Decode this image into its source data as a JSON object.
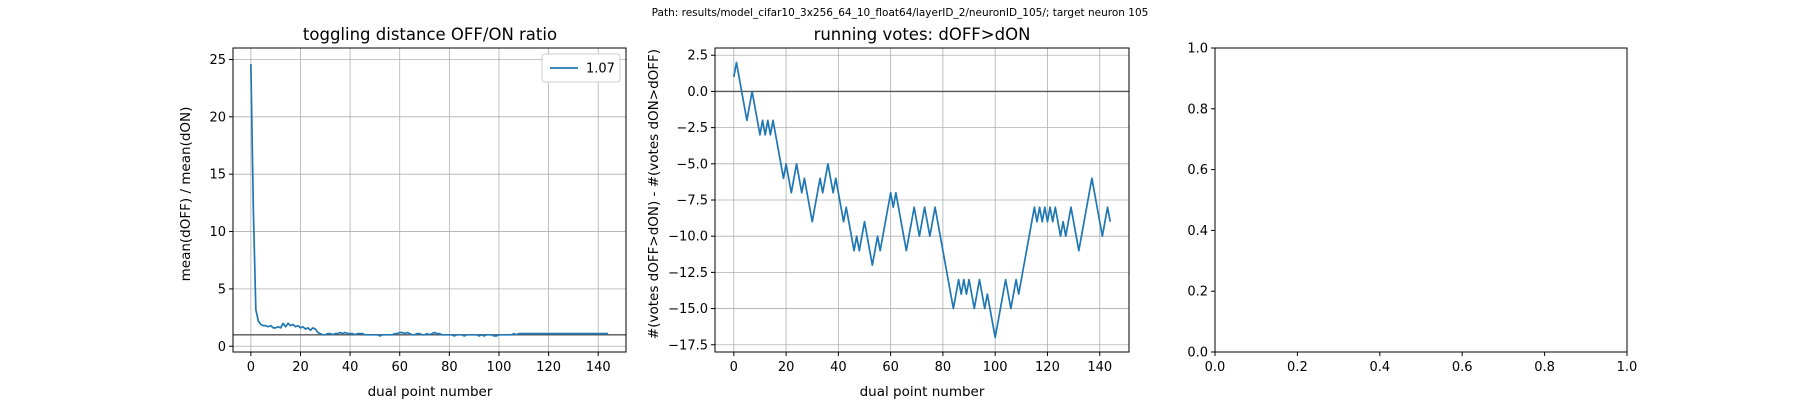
{
  "figure": {
    "suptitle": "Path: results/model_cifar10_3x256_64_10_float64/layerID_2/neuronID_105/; target neuron 105"
  },
  "chart_data": [
    {
      "type": "line",
      "title": "toggling distance OFF/ON ratio",
      "xlabel": "dual point number",
      "ylabel": "mean(dOFF) / mean(dON)",
      "xlim": [
        -7.2,
        151.2
      ],
      "ylim": [
        -0.5,
        26.0
      ],
      "xticks": [
        0,
        20,
        40,
        60,
        80,
        100,
        120,
        140
      ],
      "yticks": [
        0,
        5,
        10,
        15,
        20,
        25
      ],
      "grid": true,
      "legend": "top-right",
      "color": "#1f77b4",
      "hline": {
        "y": 1.0,
        "color": "#555555"
      },
      "series": [
        {
          "name": "1.07",
          "x": [
            0,
            1,
            2,
            3,
            4,
            5,
            6,
            7,
            8,
            9,
            10,
            11,
            12,
            13,
            14,
            15,
            16,
            17,
            18,
            19,
            20,
            21,
            22,
            23,
            24,
            25,
            26,
            27,
            28,
            29,
            30,
            31,
            32,
            33,
            34,
            35,
            36,
            37,
            38,
            39,
            40,
            41,
            42,
            43,
            44,
            45,
            46,
            47,
            48,
            49,
            50,
            51,
            52,
            53,
            54,
            55,
            56,
            57,
            58,
            59,
            60,
            61,
            62,
            63,
            64,
            65,
            66,
            67,
            68,
            69,
            70,
            71,
            72,
            73,
            74,
            75,
            76,
            77,
            78,
            79,
            80,
            81,
            82,
            83,
            84,
            85,
            86,
            87,
            88,
            89,
            90,
            91,
            92,
            93,
            94,
            95,
            96,
            97,
            98,
            99,
            100,
            101,
            102,
            103,
            104,
            105,
            106,
            107,
            108,
            109,
            110,
            111,
            112,
            113,
            114,
            115,
            116,
            117,
            118,
            119,
            120,
            121,
            122,
            123,
            124,
            125,
            126,
            127,
            128,
            129,
            130,
            131,
            132,
            133,
            134,
            135,
            136,
            137,
            138,
            139,
            140,
            141,
            142,
            143,
            144
          ],
          "values": [
            24.6,
            12.0,
            3.2,
            2.2,
            1.9,
            1.8,
            1.8,
            1.7,
            1.8,
            1.6,
            1.6,
            1.7,
            1.6,
            2.0,
            1.7,
            2.0,
            1.8,
            1.9,
            1.7,
            1.8,
            1.6,
            1.7,
            1.5,
            1.6,
            1.4,
            1.6,
            1.5,
            1.2,
            1.1,
            1.0,
            1.0,
            1.1,
            1.1,
            1.0,
            1.1,
            1.1,
            1.2,
            1.1,
            1.2,
            1.1,
            1.1,
            1.1,
            1.0,
            1.1,
            1.1,
            1.1,
            1.0,
            1.0,
            1.0,
            1.0,
            1.0,
            1.0,
            0.9,
            1.0,
            1.0,
            1.0,
            1.0,
            1.0,
            1.1,
            1.1,
            1.2,
            1.2,
            1.1,
            1.2,
            1.1,
            1.0,
            1.0,
            1.1,
            1.1,
            1.0,
            1.0,
            1.1,
            1.0,
            1.1,
            1.2,
            1.1,
            1.1,
            1.0,
            1.0,
            1.0,
            1.0,
            1.0,
            0.9,
            1.0,
            1.0,
            1.0,
            0.9,
            1.0,
            1.0,
            1.0,
            1.0,
            1.0,
            0.9,
            1.0,
            0.9,
            1.0,
            1.0,
            1.0,
            0.9,
            0.9,
            1.0,
            1.0,
            1.0,
            1.0,
            1.0,
            1.0,
            1.1,
            1.0,
            1.1,
            1.1,
            1.1,
            1.1,
            1.1,
            1.1,
            1.1,
            1.1,
            1.1,
            1.1,
            1.1,
            1.1,
            1.1,
            1.1,
            1.1,
            1.1,
            1.1,
            1.1,
            1.1,
            1.1,
            1.1,
            1.1,
            1.1,
            1.1,
            1.1,
            1.1,
            1.1,
            1.1,
            1.1,
            1.1,
            1.1,
            1.1,
            1.1,
            1.1,
            1.1,
            1.1,
            1.1
          ]
        }
      ]
    },
    {
      "type": "line",
      "title": "running votes: dOFF>dON",
      "xlabel": "dual point number",
      "ylabel": "#(votes dOFF>dON) - #(votes dON>dOFF)",
      "xlim": [
        -7.2,
        151.2
      ],
      "ylim": [
        -18.0,
        3.0
      ],
      "xticks": [
        0,
        20,
        40,
        60,
        80,
        100,
        120,
        140
      ],
      "yticks": [
        2.5,
        0.0,
        -2.5,
        -5.0,
        -7.5,
        -10.0,
        -12.5,
        -15.0,
        -17.5
      ],
      "ytick_labels": [
        "2.5",
        "0.0",
        "−2.5",
        "−5.0",
        "−7.5",
        "−10.0",
        "−12.5",
        "−15.0",
        "−17.5"
      ],
      "grid": true,
      "color": "#1f77b4",
      "hline": {
        "y": 0.0,
        "color": "#555555"
      },
      "series": [
        {
          "x": [
            0,
            1,
            2,
            3,
            4,
            5,
            6,
            7,
            8,
            9,
            10,
            11,
            12,
            13,
            14,
            15,
            16,
            17,
            18,
            19,
            20,
            21,
            22,
            23,
            24,
            25,
            26,
            27,
            28,
            29,
            30,
            31,
            32,
            33,
            34,
            35,
            36,
            37,
            38,
            39,
            40,
            41,
            42,
            43,
            44,
            45,
            46,
            47,
            48,
            49,
            50,
            51,
            52,
            53,
            54,
            55,
            56,
            57,
            58,
            59,
            60,
            61,
            62,
            63,
            64,
            65,
            66,
            67,
            68,
            69,
            70,
            71,
            72,
            73,
            74,
            75,
            76,
            77,
            78,
            79,
            80,
            81,
            82,
            83,
            84,
            85,
            86,
            87,
            88,
            89,
            90,
            91,
            92,
            93,
            94,
            95,
            96,
            97,
            98,
            99,
            100,
            101,
            102,
            103,
            104,
            105,
            106,
            107,
            108,
            109,
            110,
            111,
            112,
            113,
            114,
            115,
            116,
            117,
            118,
            119,
            120,
            121,
            122,
            123,
            124,
            125,
            126,
            127,
            128,
            129,
            130,
            131,
            132,
            133,
            134,
            135,
            136,
            137,
            138,
            139,
            140,
            141,
            142,
            143,
            144
          ],
          "values": [
            1,
            2,
            1,
            0,
            -1,
            -2,
            -1,
            0,
            -1,
            -2,
            -3,
            -2,
            -3,
            -2,
            -3,
            -2,
            -3,
            -4,
            -5,
            -6,
            -5,
            -6,
            -7,
            -6,
            -5,
            -6,
            -7,
            -6,
            -7,
            -8,
            -9,
            -8,
            -7,
            -6,
            -7,
            -6,
            -5,
            -6,
            -7,
            -6,
            -7,
            -8,
            -9,
            -8,
            -9,
            -10,
            -11,
            -10,
            -11,
            -10,
            -9,
            -10,
            -11,
            -12,
            -11,
            -10,
            -11,
            -10,
            -9,
            -8,
            -7,
            -8,
            -7,
            -8,
            -9,
            -10,
            -11,
            -10,
            -9,
            -8,
            -9,
            -10,
            -9,
            -8,
            -9,
            -10,
            -9,
            -8,
            -9,
            -10,
            -11,
            -12,
            -13,
            -14,
            -15,
            -14,
            -13,
            -14,
            -13,
            -14,
            -13,
            -14,
            -15,
            -14,
            -13,
            -14,
            -15,
            -14,
            -15,
            -16,
            -17,
            -16,
            -15,
            -14,
            -13,
            -14,
            -15,
            -14,
            -13,
            -14,
            -13,
            -12,
            -11,
            -10,
            -9,
            -8,
            -9,
            -8,
            -9,
            -8,
            -9,
            -8,
            -9,
            -8,
            -9,
            -10,
            -9,
            -10,
            -9,
            -8,
            -9,
            -10,
            -11,
            -10,
            -9,
            -8,
            -7,
            -6,
            -7,
            -8,
            -9,
            -10,
            -9,
            -8,
            -9
          ]
        }
      ]
    },
    {
      "type": "line",
      "title": "",
      "xlabel": "",
      "ylabel": "",
      "xlim": [
        0.0,
        1.0
      ],
      "ylim": [
        0.0,
        1.0
      ],
      "xticks": [
        0.0,
        0.2,
        0.4,
        0.6,
        0.8,
        1.0
      ],
      "yticks": [
        0.0,
        0.2,
        0.4,
        0.6,
        0.8,
        1.0
      ],
      "grid": false,
      "series": []
    }
  ]
}
